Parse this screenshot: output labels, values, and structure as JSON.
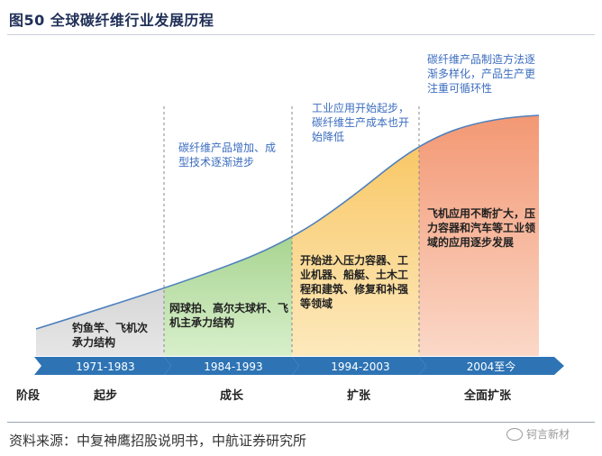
{
  "title": "图50  全球碳纤维行业发展历程",
  "phases": [
    {
      "period": "1971-1983",
      "stage": "起步",
      "note": "钓鱼竿、飞机次承力结构"
    },
    {
      "period": "1984-1993",
      "stage": "成长",
      "note_top": "碳纤维产品增加、成型技术逐渐进步",
      "note": "网球拍、高尔夫球杆、飞机主承力结构"
    },
    {
      "period": "1994-2003",
      "stage": "扩张",
      "note_top": "工业应用开始起步，碳纤维生产成本也开始降低",
      "note": "开始进入压力容器、工业机器、船艇、土木工程和建筑、修复和补强等领域"
    },
    {
      "period": "2004至今",
      "stage": "全面扩张",
      "note_top": "碳纤维产品制造方法逐渐多样化，产品生产更注重可循环性",
      "note": "飞机应用不断扩大，压力容器和汽车等工业领域的应用逐步发展"
    }
  ],
  "row_label": "阶段",
  "source": "资料来源：中复神鹰招股说明书，中航证券研究所",
  "watermark": "钶言新材",
  "colors": {
    "phase1": "#bfbfbf",
    "phase2": "#7fc15a",
    "phase3": "#f7c96b",
    "phase4": "#f3a07f",
    "arrow": "#2e74b5",
    "curve": "#4f81bd",
    "note_blue": "#3b6dbf"
  }
}
